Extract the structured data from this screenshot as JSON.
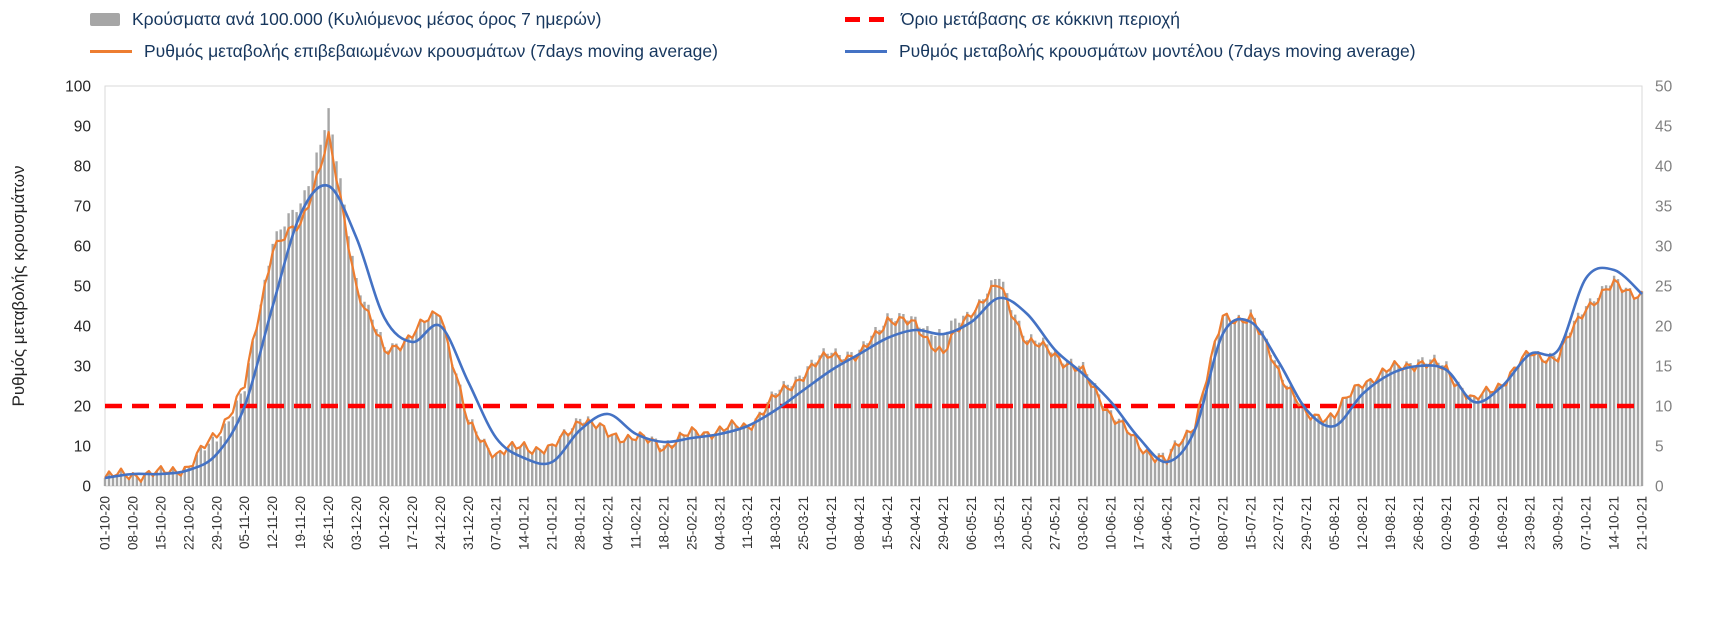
{
  "colors": {
    "bars": "#a6a6a6",
    "confirmed": "#ED7D31",
    "model": "#4472C4",
    "threshold": "#FF0000",
    "axis_line": "#d9d9d9",
    "left_axis_text": "#262626",
    "right_axis_text": "#808080",
    "legend_text": "#17375E"
  },
  "legend": {
    "bars": "Κρούσματα ανά 100.000 (Κυλιόμενος μέσος όρος 7 ημερών)",
    "threshold": "Όριο μετάβασης σε κόκκινη περιοχή",
    "confirmed": "Ρυθμός μεταβολής επιβεβαιωμένων κρουσμάτων (7days moving average)",
    "model": "Ρυθμός μεταβολής κρουσμάτων μοντέλου (7days moving average)"
  },
  "chart_data": {
    "type": "bar+line",
    "title": "",
    "ylabel_left": "Ρυθμός μεταβολής κρουσμάτων",
    "left_axis": {
      "min": 0,
      "max": 100,
      "step": 10
    },
    "right_axis": {
      "min": 0,
      "max": 50,
      "step": 5
    },
    "threshold_left_value": 20,
    "grid": false,
    "legend_position": "top",
    "categories": [
      "01-10-20",
      "08-10-20",
      "15-10-20",
      "22-10-20",
      "29-10-20",
      "05-11-20",
      "12-11-20",
      "19-11-20",
      "26-11-20",
      "03-12-20",
      "10-12-20",
      "17-12-20",
      "24-12-20",
      "31-12-20",
      "07-01-21",
      "14-01-21",
      "21-01-21",
      "28-01-21",
      "04-02-21",
      "11-02-21",
      "18-02-21",
      "25-02-21",
      "04-03-21",
      "11-03-21",
      "18-03-21",
      "25-03-21",
      "01-04-21",
      "08-04-21",
      "15-04-21",
      "22-04-21",
      "29-04-21",
      "06-05-21",
      "13-05-21",
      "20-05-21",
      "27-05-21",
      "03-06-21",
      "10-06-21",
      "17-06-21",
      "24-06-21",
      "01-07-21",
      "08-07-21",
      "15-07-21",
      "22-07-21",
      "29-07-21",
      "05-08-21",
      "12-08-21",
      "19-08-21",
      "26-08-21",
      "02-09-21",
      "09-09-21",
      "16-09-21",
      "23-09-21",
      "30-09-21",
      "07-10-21",
      "14-10-21",
      "21-10-21"
    ],
    "series": [
      {
        "name": "Κρούσματα ανά 100.000 (Κυλιόμενος μέσος όρος 7 ημερών)",
        "type": "bar",
        "axis": "right",
        "values": [
          1,
          1.5,
          1.5,
          2.5,
          6,
          12,
          31,
          35,
          46.5,
          26,
          17,
          19,
          22,
          8,
          4,
          5,
          4.5,
          9,
          6.5,
          6,
          5.5,
          6.5,
          7,
          7.5,
          11.5,
          14.5,
          17,
          16.5,
          21.5,
          20.5,
          19,
          22,
          26,
          18.5,
          17,
          14.5,
          9.5,
          5,
          3.5,
          8,
          21,
          21.5,
          15,
          8.5,
          9,
          13,
          14.5,
          16,
          15,
          10.5,
          13,
          16.5,
          16.5,
          23,
          25.5,
          24
        ]
      },
      {
        "name": "Ρυθμός μεταβολής επιβεβαιωμένων κρουσμάτων (7days moving average)",
        "type": "line",
        "axis": "left",
        "values": [
          2,
          3,
          3,
          5,
          13,
          25,
          60,
          65,
          87,
          50,
          33,
          38,
          44,
          15,
          8,
          10,
          9,
          17,
          13,
          12,
          10,
          13,
          14,
          15,
          22,
          28,
          33,
          32,
          42,
          40,
          33,
          44,
          50,
          36,
          33,
          28,
          18,
          10,
          6,
          16,
          42,
          42,
          29,
          17,
          18,
          26,
          29,
          31,
          29,
          21,
          26,
          33,
          32,
          45,
          50,
          48
        ]
      },
      {
        "name": "Ρυθμός μεταβολής κρουσμάτων μοντέλου (7days moving average)",
        "type": "line",
        "axis": "left",
        "values": [
          2,
          3,
          3,
          4,
          8,
          20,
          45,
          68,
          75,
          62,
          42,
          36,
          40,
          26,
          12,
          7,
          6,
          14,
          18,
          13,
          11,
          12,
          13,
          15,
          19,
          24,
          29,
          33,
          37,
          39,
          38,
          41,
          47,
          43,
          34,
          28,
          21,
          12,
          6,
          14,
          38,
          41,
          31,
          19,
          15,
          23,
          28,
          30,
          29,
          21,
          25,
          33,
          34,
          52,
          54,
          48
        ]
      }
    ]
  }
}
